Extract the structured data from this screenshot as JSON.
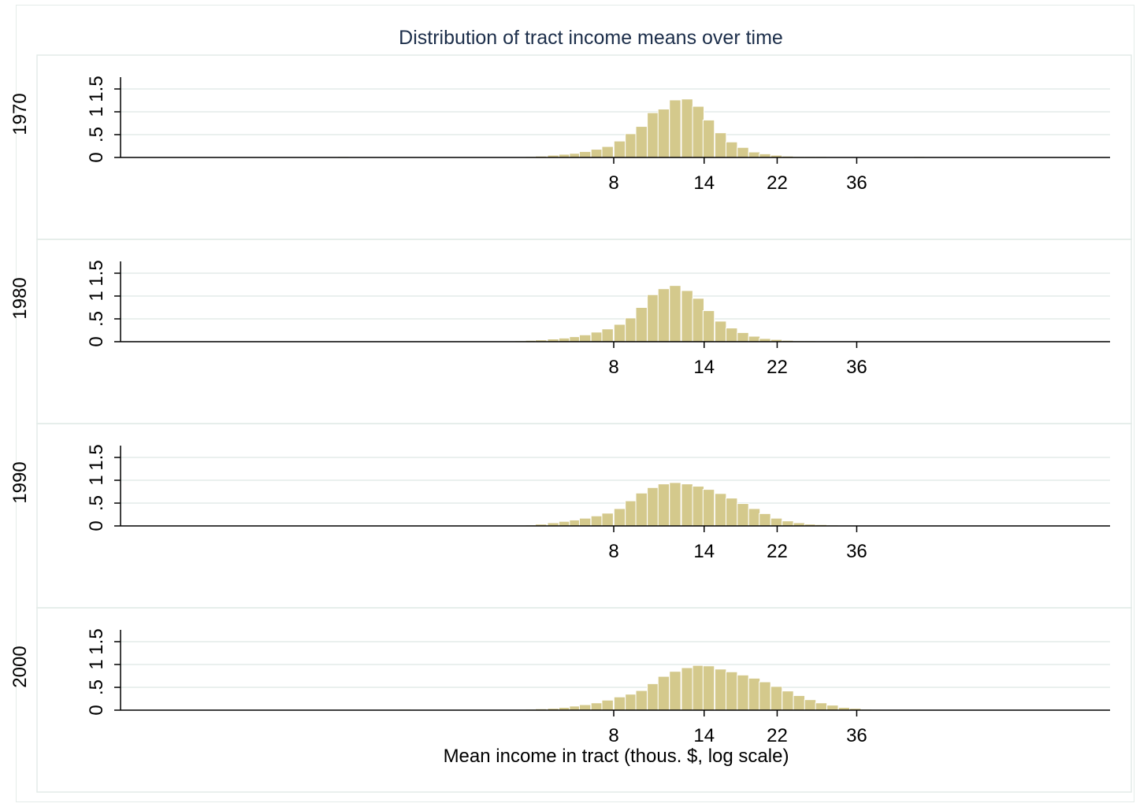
{
  "chart_data": {
    "type": "bar",
    "title": "Distribution of tract income means over time",
    "xlabel": "Mean income in tract (thous. $, log scale)",
    "ylabel": "",
    "x_scale": "log",
    "x_ticks": [
      8,
      14,
      22,
      36
    ],
    "xlim": [
      0.4,
      500
    ],
    "ylim": [
      0,
      1.75
    ],
    "y_ticks": [
      0,
      0.5,
      1,
      1.5
    ],
    "y_tick_labels": [
      "0",
      ".5",
      "1",
      "1.5"
    ],
    "grid": "horizontal",
    "bar_color": "#d4c98c",
    "bar_edge_color": "#ffffff",
    "bin_width_log": 0.0704,
    "panels": [
      {
        "label": "1970",
        "bins": [
          {
            "x": 1.5,
            "density": 0.02
          },
          {
            "x": 2.9,
            "density": 0.01
          },
          {
            "x": 3.1,
            "density": 0.01
          },
          {
            "x": 3.3,
            "density": 0.01
          },
          {
            "x": 3.5,
            "density": 0.01
          },
          {
            "x": 3.7,
            "density": 0.01
          },
          {
            "x": 3.9,
            "density": 0.01
          },
          {
            "x": 4.2,
            "density": 0.01
          },
          {
            "x": 4.5,
            "density": 0.01
          },
          {
            "x": 4.8,
            "density": 0.02
          },
          {
            "x": 5.1,
            "density": 0.03
          },
          {
            "x": 5.5,
            "density": 0.05
          },
          {
            "x": 5.9,
            "density": 0.07
          },
          {
            "x": 6.3,
            "density": 0.09
          },
          {
            "x": 6.7,
            "density": 0.13
          },
          {
            "x": 7.2,
            "density": 0.18
          },
          {
            "x": 7.7,
            "density": 0.24
          },
          {
            "x": 8.3,
            "density": 0.36
          },
          {
            "x": 8.9,
            "density": 0.52
          },
          {
            "x": 9.5,
            "density": 0.68
          },
          {
            "x": 10.2,
            "density": 0.98
          },
          {
            "x": 10.9,
            "density": 1.06
          },
          {
            "x": 11.7,
            "density": 1.26
          },
          {
            "x": 12.6,
            "density": 1.28
          },
          {
            "x": 13.5,
            "density": 1.12
          },
          {
            "x": 14.4,
            "density": 0.82
          },
          {
            "x": 15.5,
            "density": 0.54
          },
          {
            "x": 16.6,
            "density": 0.34
          },
          {
            "x": 17.8,
            "density": 0.22
          },
          {
            "x": 19.1,
            "density": 0.12
          },
          {
            "x": 20.4,
            "density": 0.08
          },
          {
            "x": 21.9,
            "density": 0.05
          },
          {
            "x": 23.5,
            "density": 0.03
          },
          {
            "x": 25.2,
            "density": 0.02
          },
          {
            "x": 27.0,
            "density": 0.02
          },
          {
            "x": 28.9,
            "density": 0.02
          },
          {
            "x": 31.0,
            "density": 0.01
          },
          {
            "x": 33.3,
            "density": 0.01
          },
          {
            "x": 35.7,
            "density": 0.01
          },
          {
            "x": 38.3,
            "density": 0.01
          },
          {
            "x": 41.0,
            "density": 0.01
          },
          {
            "x": 44.0,
            "density": 0.01
          },
          {
            "x": 53.0,
            "density": 0.02
          }
        ]
      },
      {
        "label": "1980",
        "bins": [
          {
            "x": 1.2,
            "density": 0.01
          },
          {
            "x": 2.3,
            "density": 0.01
          },
          {
            "x": 2.5,
            "density": 0.01
          },
          {
            "x": 2.7,
            "density": 0.01
          },
          {
            "x": 2.9,
            "density": 0.01
          },
          {
            "x": 3.1,
            "density": 0.01
          },
          {
            "x": 3.3,
            "density": 0.01
          },
          {
            "x": 3.5,
            "density": 0.01
          },
          {
            "x": 3.7,
            "density": 0.01
          },
          {
            "x": 3.9,
            "density": 0.01
          },
          {
            "x": 4.2,
            "density": 0.01
          },
          {
            "x": 4.5,
            "density": 0.02
          },
          {
            "x": 4.8,
            "density": 0.03
          },
          {
            "x": 5.1,
            "density": 0.04
          },
          {
            "x": 5.5,
            "density": 0.06
          },
          {
            "x": 5.9,
            "density": 0.08
          },
          {
            "x": 6.3,
            "density": 0.11
          },
          {
            "x": 6.7,
            "density": 0.15
          },
          {
            "x": 7.2,
            "density": 0.21
          },
          {
            "x": 7.7,
            "density": 0.28
          },
          {
            "x": 8.3,
            "density": 0.38
          },
          {
            "x": 8.9,
            "density": 0.52
          },
          {
            "x": 9.5,
            "density": 0.75
          },
          {
            "x": 10.2,
            "density": 1.03
          },
          {
            "x": 10.9,
            "density": 1.16
          },
          {
            "x": 11.7,
            "density": 1.23
          },
          {
            "x": 12.6,
            "density": 1.12
          },
          {
            "x": 13.5,
            "density": 0.95
          },
          {
            "x": 14.4,
            "density": 0.68
          },
          {
            "x": 15.5,
            "density": 0.45
          },
          {
            "x": 16.6,
            "density": 0.3
          },
          {
            "x": 17.8,
            "density": 0.2
          },
          {
            "x": 19.1,
            "density": 0.12
          },
          {
            "x": 20.4,
            "density": 0.07
          },
          {
            "x": 21.9,
            "density": 0.05
          },
          {
            "x": 23.5,
            "density": 0.03
          },
          {
            "x": 25.2,
            "density": 0.02
          },
          {
            "x": 27.0,
            "density": 0.02
          },
          {
            "x": 28.9,
            "density": 0.01
          },
          {
            "x": 31.0,
            "density": 0.01
          },
          {
            "x": 33.3,
            "density": 0.01
          },
          {
            "x": 35.7,
            "density": 0.01
          },
          {
            "x": 38.3,
            "density": 0.01
          },
          {
            "x": 41.0,
            "density": 0.01
          },
          {
            "x": 44.0,
            "density": 0.01
          },
          {
            "x": 47.2,
            "density": 0.01
          }
        ]
      },
      {
        "label": "1990",
        "bins": [
          {
            "x": 1.6,
            "density": 0.01
          },
          {
            "x": 2.0,
            "density": 0.01
          },
          {
            "x": 2.2,
            "density": 0.01
          },
          {
            "x": 2.4,
            "density": 0.01
          },
          {
            "x": 2.6,
            "density": 0.01
          },
          {
            "x": 2.8,
            "density": 0.01
          },
          {
            "x": 3.0,
            "density": 0.01
          },
          {
            "x": 3.2,
            "density": 0.01
          },
          {
            "x": 3.4,
            "density": 0.01
          },
          {
            "x": 3.7,
            "density": 0.01
          },
          {
            "x": 3.9,
            "density": 0.01
          },
          {
            "x": 4.2,
            "density": 0.01
          },
          {
            "x": 4.5,
            "density": 0.01
          },
          {
            "x": 4.8,
            "density": 0.02
          },
          {
            "x": 5.1,
            "density": 0.04
          },
          {
            "x": 5.5,
            "density": 0.07
          },
          {
            "x": 5.9,
            "density": 0.1
          },
          {
            "x": 6.3,
            "density": 0.13
          },
          {
            "x": 6.7,
            "density": 0.17
          },
          {
            "x": 7.2,
            "density": 0.22
          },
          {
            "x": 7.7,
            "density": 0.28
          },
          {
            "x": 8.3,
            "density": 0.38
          },
          {
            "x": 8.9,
            "density": 0.55
          },
          {
            "x": 9.5,
            "density": 0.72
          },
          {
            "x": 10.2,
            "density": 0.84
          },
          {
            "x": 10.9,
            "density": 0.92
          },
          {
            "x": 11.7,
            "density": 0.95
          },
          {
            "x": 12.6,
            "density": 0.92
          },
          {
            "x": 13.5,
            "density": 0.87
          },
          {
            "x": 14.4,
            "density": 0.8
          },
          {
            "x": 15.5,
            "density": 0.71
          },
          {
            "x": 16.6,
            "density": 0.61
          },
          {
            "x": 17.8,
            "density": 0.49
          },
          {
            "x": 19.1,
            "density": 0.38
          },
          {
            "x": 20.4,
            "density": 0.27
          },
          {
            "x": 21.9,
            "density": 0.17
          },
          {
            "x": 23.5,
            "density": 0.11
          },
          {
            "x": 25.2,
            "density": 0.07
          },
          {
            "x": 27.0,
            "density": 0.04
          },
          {
            "x": 28.9,
            "density": 0.03
          },
          {
            "x": 31.0,
            "density": 0.02
          },
          {
            "x": 33.3,
            "density": 0.01
          },
          {
            "x": 35.7,
            "density": 0.01
          },
          {
            "x": 38.3,
            "density": 0.01
          },
          {
            "x": 41.0,
            "density": 0.01
          },
          {
            "x": 44.0,
            "density": 0.01
          },
          {
            "x": 47.2,
            "density": 0.01
          },
          {
            "x": 50.5,
            "density": 0.01
          },
          {
            "x": 54.2,
            "density": 0.01
          },
          {
            "x": 58.0,
            "density": 0.01
          }
        ]
      },
      {
        "label": "2000",
        "bins": [
          {
            "x": 2.2,
            "density": 0.02
          },
          {
            "x": 2.6,
            "density": 0.01
          },
          {
            "x": 3.0,
            "density": 0.01
          },
          {
            "x": 3.2,
            "density": 0.01
          },
          {
            "x": 3.4,
            "density": 0.01
          },
          {
            "x": 3.7,
            "density": 0.01
          },
          {
            "x": 3.9,
            "density": 0.01
          },
          {
            "x": 4.2,
            "density": 0.01
          },
          {
            "x": 4.5,
            "density": 0.01
          },
          {
            "x": 4.8,
            "density": 0.02
          },
          {
            "x": 5.1,
            "density": 0.03
          },
          {
            "x": 5.5,
            "density": 0.04
          },
          {
            "x": 5.9,
            "density": 0.06
          },
          {
            "x": 6.3,
            "density": 0.09
          },
          {
            "x": 6.7,
            "density": 0.12
          },
          {
            "x": 7.2,
            "density": 0.16
          },
          {
            "x": 7.7,
            "density": 0.22
          },
          {
            "x": 8.3,
            "density": 0.29
          },
          {
            "x": 8.9,
            "density": 0.35
          },
          {
            "x": 9.5,
            "density": 0.43
          },
          {
            "x": 10.2,
            "density": 0.58
          },
          {
            "x": 10.9,
            "density": 0.74
          },
          {
            "x": 11.7,
            "density": 0.85
          },
          {
            "x": 12.6,
            "density": 0.93
          },
          {
            "x": 13.5,
            "density": 0.98
          },
          {
            "x": 14.4,
            "density": 0.97
          },
          {
            "x": 15.5,
            "density": 0.9
          },
          {
            "x": 16.6,
            "density": 0.84
          },
          {
            "x": 17.8,
            "density": 0.77
          },
          {
            "x": 19.1,
            "density": 0.7
          },
          {
            "x": 20.4,
            "density": 0.62
          },
          {
            "x": 21.9,
            "density": 0.52
          },
          {
            "x": 23.5,
            "density": 0.42
          },
          {
            "x": 25.2,
            "density": 0.32
          },
          {
            "x": 27.0,
            "density": 0.23
          },
          {
            "x": 28.9,
            "density": 0.16
          },
          {
            "x": 31.0,
            "density": 0.11
          },
          {
            "x": 33.3,
            "density": 0.06
          },
          {
            "x": 35.7,
            "density": 0.04
          },
          {
            "x": 38.3,
            "density": 0.02
          },
          {
            "x": 41.0,
            "density": 0.01
          },
          {
            "x": 44.0,
            "density": 0.01
          },
          {
            "x": 47.2,
            "density": 0.01
          },
          {
            "x": 50.5,
            "density": 0.01
          }
        ]
      }
    ]
  }
}
